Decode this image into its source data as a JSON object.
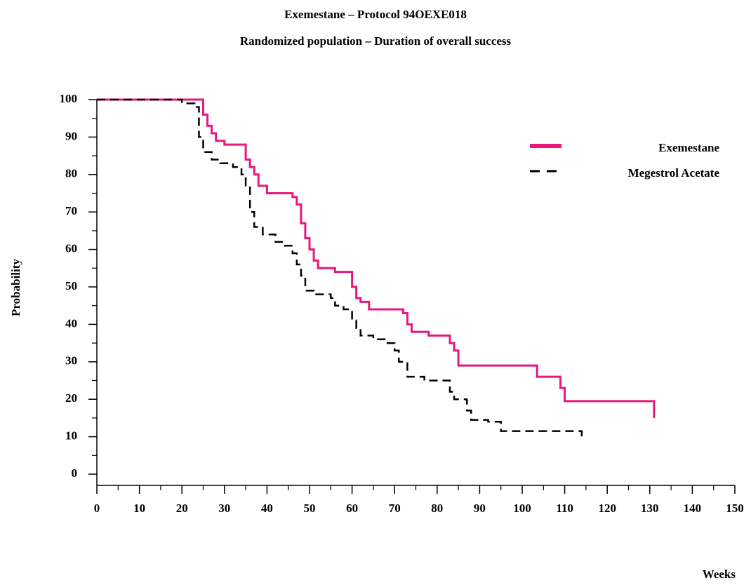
{
  "chart_data": {
    "type": "line",
    "step": "post",
    "title": "Exemestane   – Protocol 94OEXE018",
    "subtitle": "Randomized population – Duration of overall success",
    "x_label": "Weeks",
    "y_label": "Probability",
    "xlim": [
      0,
      150
    ],
    "ylim": [
      0,
      100
    ],
    "xticks": [
      0,
      10,
      20,
      30,
      40,
      50,
      60,
      70,
      80,
      90,
      100,
      110,
      120,
      130,
      140,
      150
    ],
    "yticks": [
      0,
      10,
      20,
      30,
      40,
      50,
      60,
      70,
      80,
      90,
      100
    ],
    "legend": "upper right",
    "series": [
      {
        "name": "Exemestane",
        "color": "#e8177d",
        "dash": false,
        "x": [
          0,
          24,
          25,
          26,
          27,
          28,
          30,
          34,
          35,
          36,
          37,
          38,
          40,
          44,
          46,
          47,
          48,
          49,
          50,
          51,
          52,
          56,
          59,
          60,
          61,
          62,
          64,
          72,
          73,
          74,
          78,
          82,
          83,
          84,
          85,
          103,
          103.5,
          108,
          109,
          110,
          131,
          131
        ],
        "values": [
          100,
          100,
          96,
          93,
          91,
          89,
          88,
          88,
          84,
          82,
          80,
          77,
          75,
          75,
          74,
          72,
          67,
          63,
          60,
          57,
          55,
          54,
          54,
          50,
          47,
          46,
          44,
          43,
          40,
          38,
          37,
          37,
          35,
          33,
          29,
          29,
          26,
          26,
          23,
          19.5,
          19.5,
          15
        ]
      },
      {
        "name": "Megestrol Acetate",
        "color": "#000000",
        "dash": true,
        "x": [
          0,
          18,
          20,
          23,
          24,
          25,
          27,
          29,
          32,
          34,
          35,
          36,
          37,
          39,
          42,
          44,
          46,
          47,
          48,
          49,
          51,
          55,
          56,
          58,
          60,
          61,
          62,
          65,
          68,
          70,
          71,
          73,
          77,
          83,
          84,
          87,
          88,
          92,
          95,
          114,
          114
        ],
        "values": [
          100,
          100,
          99,
          98,
          90,
          86,
          84,
          83,
          82,
          80,
          77,
          70,
          66,
          64,
          62,
          61,
          59,
          56,
          53,
          49,
          48,
          47,
          45,
          44,
          41,
          39,
          37,
          36,
          35,
          33,
          30,
          26,
          25,
          22,
          20,
          17,
          14.5,
          14,
          11.5,
          11.5,
          9
        ]
      }
    ]
  }
}
